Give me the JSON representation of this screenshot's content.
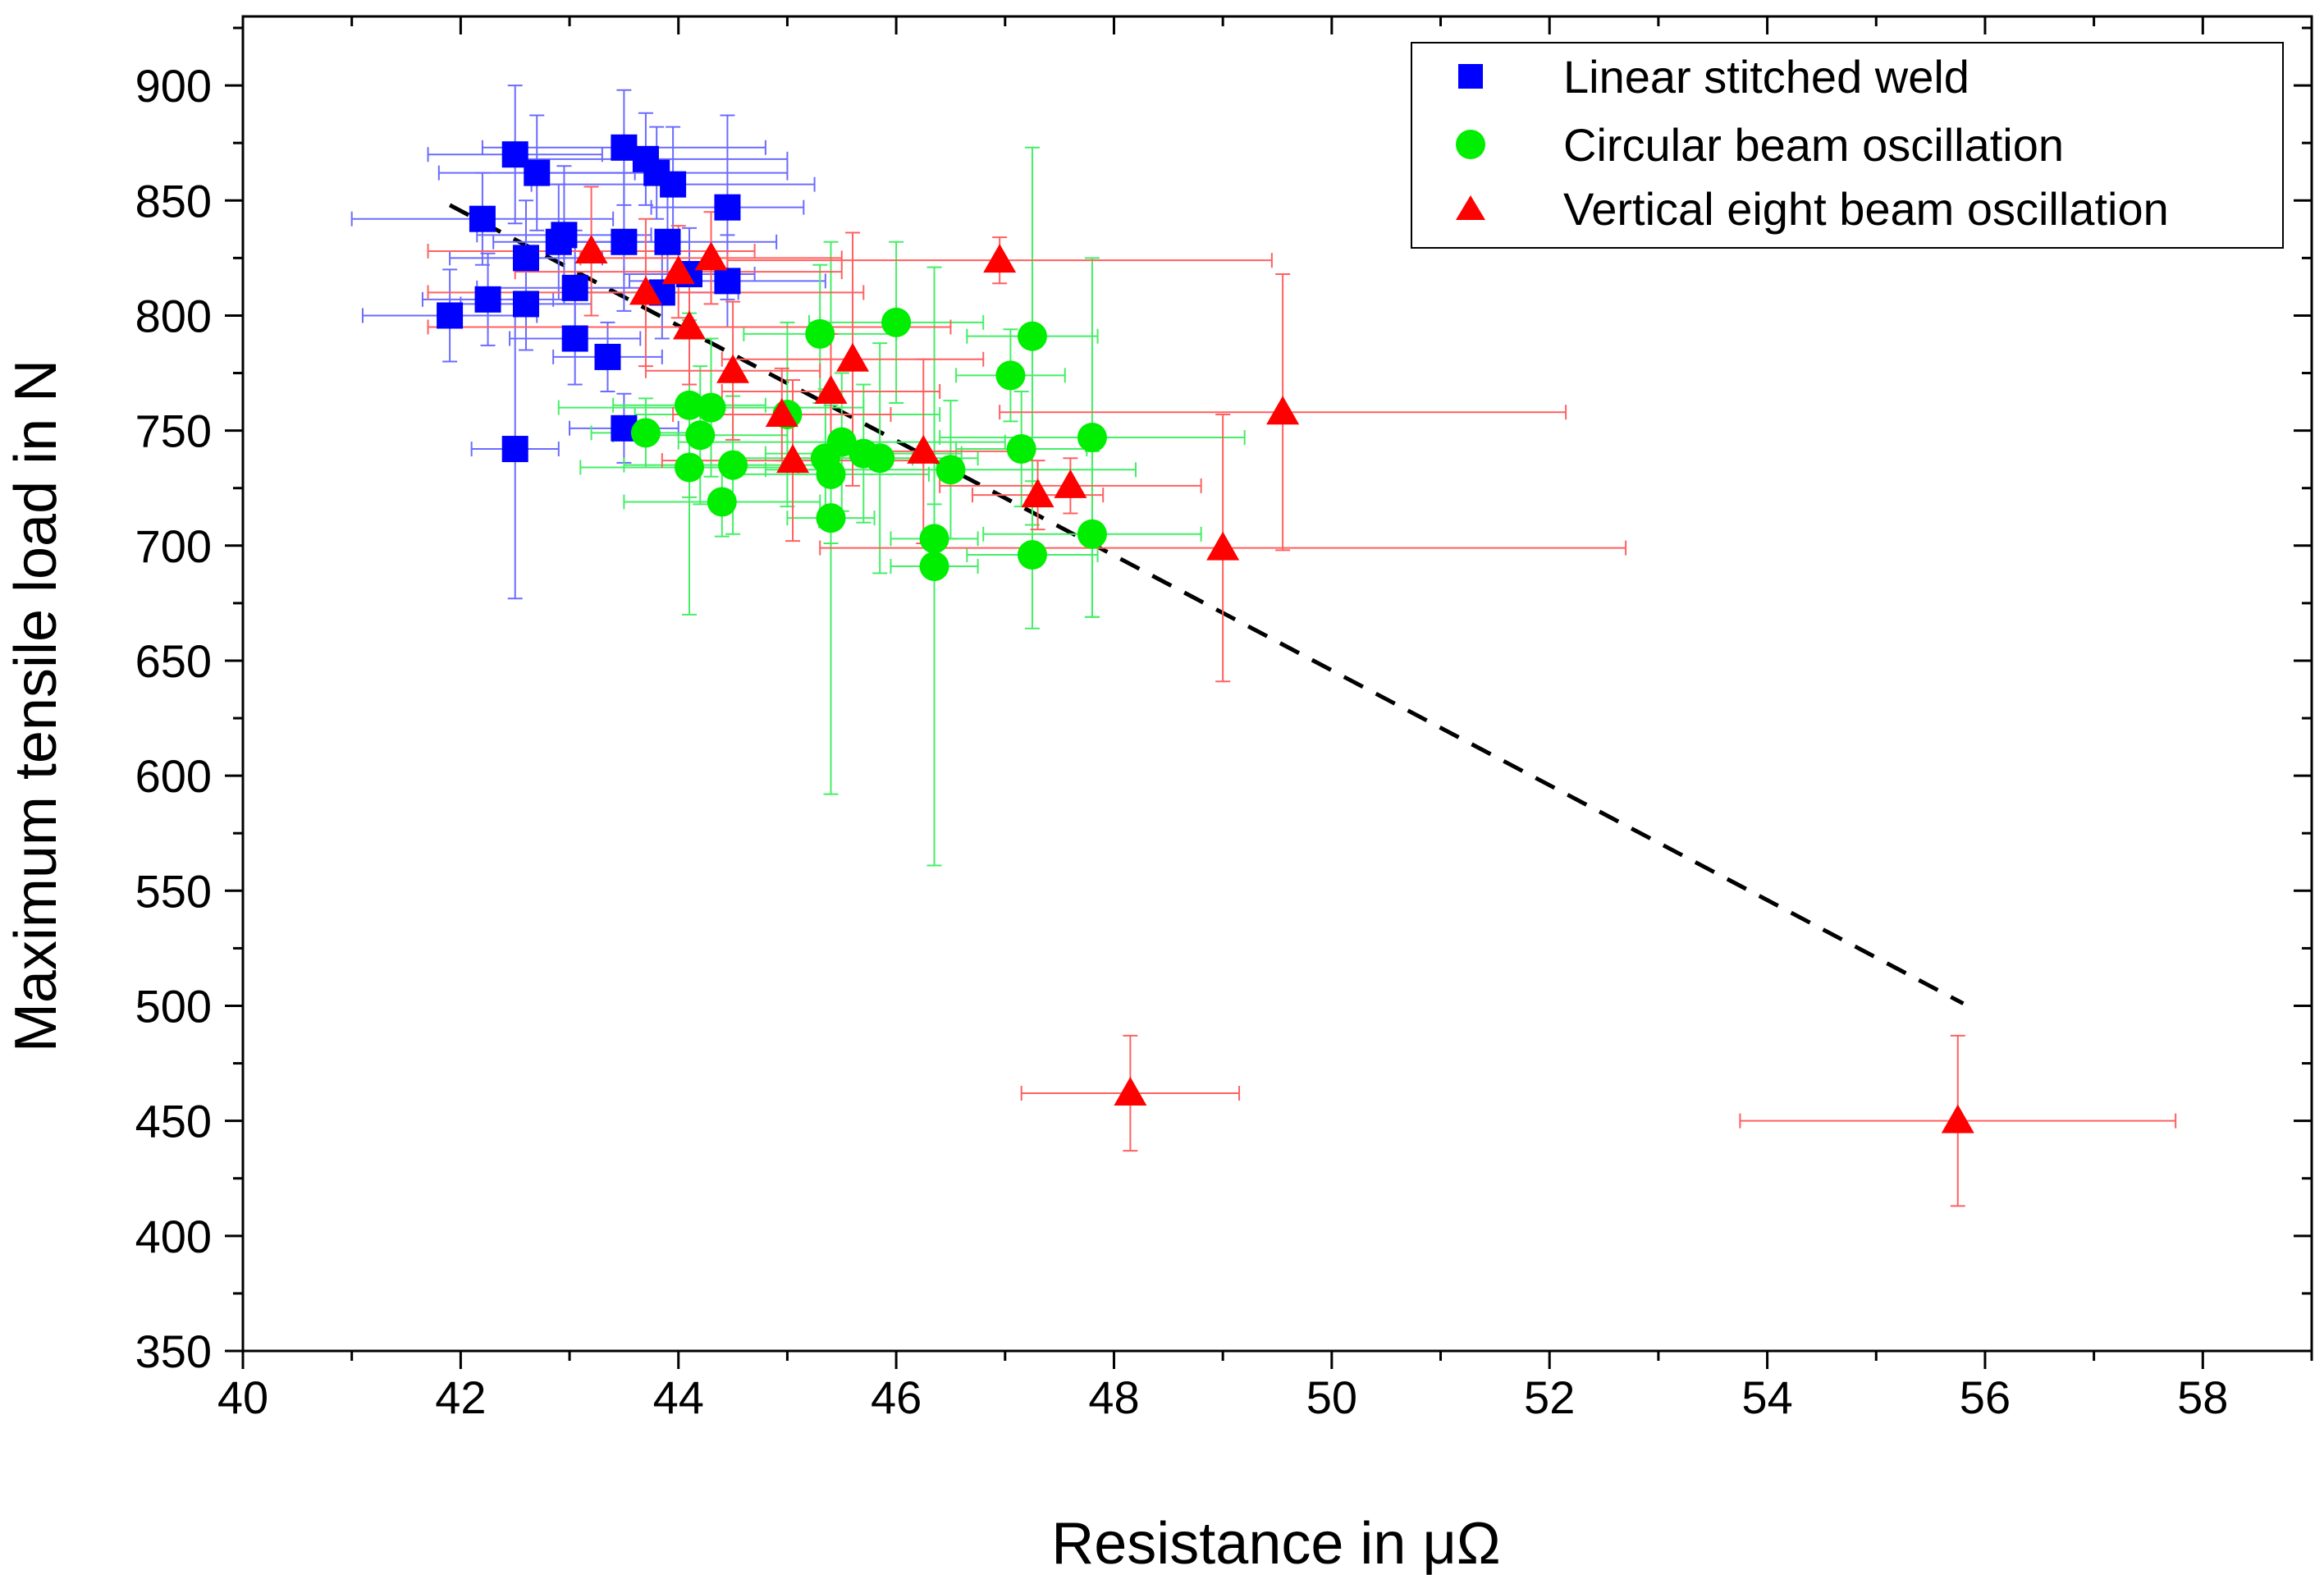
{
  "chart_data": {
    "type": "scatter",
    "title": "",
    "xlabel": "Resistance in μΩ",
    "ylabel": "Maximum tensile load in N",
    "xlim": [
      40,
      59
    ],
    "ylim": [
      350,
      930
    ],
    "xticks": [
      40,
      42,
      44,
      46,
      48,
      50,
      52,
      54,
      56,
      58
    ],
    "yticks": [
      350,
      400,
      450,
      500,
      550,
      600,
      650,
      700,
      750,
      800,
      850,
      900
    ],
    "legend_position": "top-right",
    "series": [
      {
        "name": "Linear stitched weld",
        "marker": "square",
        "color": "#0000ff",
        "errorbar_color": "#6b6bff",
        "points": [
          {
            "x": 41.9,
            "y": 800,
            "xerr": 0.8,
            "yerr": 20
          },
          {
            "x": 42.2,
            "y": 842,
            "xerr": 1.2,
            "yerr": 20
          },
          {
            "x": 42.25,
            "y": 807,
            "xerr": 0.6,
            "yerr": 20
          },
          {
            "x": 42.5,
            "y": 742,
            "xerr": 0.4,
            "yerr": 65
          },
          {
            "x": 42.5,
            "y": 870,
            "xerr": 0.8,
            "yerr": 30
          },
          {
            "x": 42.6,
            "y": 825,
            "xerr": 0.7,
            "yerr": 25
          },
          {
            "x": 42.6,
            "y": 805,
            "xerr": 0.6,
            "yerr": 20
          },
          {
            "x": 42.7,
            "y": 862,
            "xerr": 0.9,
            "yerr": 25
          },
          {
            "x": 42.9,
            "y": 832,
            "xerr": 0.6,
            "yerr": 25
          },
          {
            "x": 42.95,
            "y": 835,
            "xerr": 0.8,
            "yerr": 30
          },
          {
            "x": 43.05,
            "y": 812,
            "xerr": 0.9,
            "yerr": 25
          },
          {
            "x": 43.05,
            "y": 790,
            "xerr": 0.6,
            "yerr": 20
          },
          {
            "x": 43.35,
            "y": 782,
            "xerr": 0.5,
            "yerr": 15
          },
          {
            "x": 43.5,
            "y": 873,
            "xerr": 1.3,
            "yerr": 25
          },
          {
            "x": 43.5,
            "y": 832,
            "xerr": 0.6,
            "yerr": 30
          },
          {
            "x": 43.5,
            "y": 751,
            "xerr": 0.5,
            "yerr": 15
          },
          {
            "x": 43.7,
            "y": 868,
            "xerr": 1.3,
            "yerr": 20
          },
          {
            "x": 43.8,
            "y": 862,
            "xerr": 1.2,
            "yerr": 20
          },
          {
            "x": 43.85,
            "y": 810,
            "xerr": 0.7,
            "yerr": 20
          },
          {
            "x": 43.9,
            "y": 832,
            "xerr": 1.0,
            "yerr": 20
          },
          {
            "x": 43.95,
            "y": 857,
            "xerr": 1.3,
            "yerr": 25
          },
          {
            "x": 44.1,
            "y": 818,
            "xerr": 0.6,
            "yerr": 20
          },
          {
            "x": 44.45,
            "y": 847,
            "xerr": 0.7,
            "yerr": 40
          },
          {
            "x": 44.45,
            "y": 815,
            "xerr": 0.9,
            "yerr": 20
          }
        ]
      },
      {
        "name": "Circular beam oscillation",
        "marker": "circle",
        "color": "#00ee00",
        "errorbar_color": "#44ee66",
        "points": [
          {
            "x": 43.7,
            "y": 749,
            "xerr": 0.5,
            "yerr": 15
          },
          {
            "x": 44.1,
            "y": 761,
            "xerr": 0.7,
            "yerr": 40
          },
          {
            "x": 44.1,
            "y": 734,
            "xerr": 1.0,
            "yerr": 64
          },
          {
            "x": 44.2,
            "y": 748,
            "xerr": 0.8,
            "yerr": 30
          },
          {
            "x": 44.3,
            "y": 760,
            "xerr": 1.4,
            "yerr": 30
          },
          {
            "x": 44.4,
            "y": 719,
            "xerr": 0.9,
            "yerr": 15
          },
          {
            "x": 44.5,
            "y": 735,
            "xerr": 1.0,
            "yerr": 30
          },
          {
            "x": 45.0,
            "y": 757,
            "xerr": 1.4,
            "yerr": 40
          },
          {
            "x": 45.3,
            "y": 792,
            "xerr": 0.7,
            "yerr": 30
          },
          {
            "x": 45.35,
            "y": 738,
            "xerr": 0.8,
            "yerr": 30
          },
          {
            "x": 45.4,
            "y": 731,
            "xerr": 0.9,
            "yerr": 30
          },
          {
            "x": 45.4,
            "y": 712,
            "xerr": 0.4,
            "yerr": 120
          },
          {
            "x": 45.5,
            "y": 745,
            "xerr": 1.5,
            "yerr": 30
          },
          {
            "x": 45.7,
            "y": 740,
            "xerr": 0.9,
            "yerr": 30
          },
          {
            "x": 45.85,
            "y": 738,
            "xerr": 0.9,
            "yerr": 50
          },
          {
            "x": 46.0,
            "y": 797,
            "xerr": 0.8,
            "yerr": 35
          },
          {
            "x": 46.35,
            "y": 703,
            "xerr": 0.4,
            "yerr": 15
          },
          {
            "x": 46.35,
            "y": 691,
            "xerr": 0.4,
            "yerr": 130
          },
          {
            "x": 46.5,
            "y": 733,
            "xerr": 1.7,
            "yerr": 30
          },
          {
            "x": 47.05,
            "y": 774,
            "xerr": 0.5,
            "yerr": 20
          },
          {
            "x": 47.15,
            "y": 742,
            "xerr": 0.6,
            "yerr": 25
          },
          {
            "x": 47.25,
            "y": 791,
            "xerr": 0.6,
            "yerr": 82
          },
          {
            "x": 47.25,
            "y": 696,
            "xerr": 0.6,
            "yerr": 32
          },
          {
            "x": 47.8,
            "y": 747,
            "xerr": 1.4,
            "yerr": 78
          },
          {
            "x": 47.8,
            "y": 705,
            "xerr": 1.0,
            "yerr": 36
          }
        ]
      },
      {
        "name": "Vertical eight beam oscillation",
        "marker": "triangle",
        "color": "#ff0000",
        "errorbar_color": "#ff6060",
        "points": [
          {
            "x": 43.2,
            "y": 828,
            "xerr": 1.5,
            "yerr": 28
          },
          {
            "x": 43.7,
            "y": 810,
            "xerr": 2.0,
            "yerr": 32
          },
          {
            "x": 44.0,
            "y": 819,
            "xerr": 1.5,
            "yerr": 20
          },
          {
            "x": 44.1,
            "y": 795,
            "xerr": 2.4,
            "yerr": 25
          },
          {
            "x": 44.3,
            "y": 825,
            "xerr": 1.2,
            "yerr": 20
          },
          {
            "x": 44.5,
            "y": 776,
            "xerr": 0.8,
            "yerr": 30
          },
          {
            "x": 44.95,
            "y": 757,
            "xerr": 1.0,
            "yerr": 20
          },
          {
            "x": 45.05,
            "y": 737,
            "xerr": 1.2,
            "yerr": 35
          },
          {
            "x": 45.4,
            "y": 767,
            "xerr": 1.0,
            "yerr": 25
          },
          {
            "x": 45.6,
            "y": 781,
            "xerr": 1.2,
            "yerr": 55
          },
          {
            "x": 46.25,
            "y": 741,
            "xerr": 0.9,
            "yerr": 40
          },
          {
            "x": 46.95,
            "y": 824,
            "xerr": 2.5,
            "yerr": 10
          },
          {
            "x": 47.3,
            "y": 722,
            "xerr": 0.6,
            "yerr": 15
          },
          {
            "x": 47.6,
            "y": 726,
            "xerr": 1.2,
            "yerr": 12
          },
          {
            "x": 48.15,
            "y": 462,
            "xerr": 1.0,
            "yerr": 25
          },
          {
            "x": 49.0,
            "y": 699,
            "xerr": 3.7,
            "yerr": 58
          },
          {
            "x": 49.55,
            "y": 758,
            "xerr": 2.6,
            "yerr": 60
          },
          {
            "x": 55.75,
            "y": 450,
            "xerr": 2.0,
            "yerr": 37
          }
        ]
      }
    ],
    "trendline": {
      "style": "dashed",
      "color": "#000000",
      "x": [
        41.9,
        55.8
      ],
      "y": [
        848,
        501
      ]
    }
  }
}
